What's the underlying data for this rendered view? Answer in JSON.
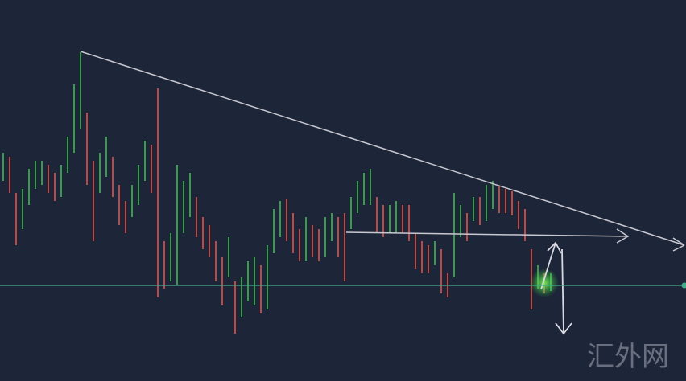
{
  "chart_data": {
    "type": "ohlc",
    "high": [
      284,
      279,
      234,
      239,
      264,
      274,
      274,
      269,
      259,
      269,
      304,
      369,
      409,
      334,
      274,
      284,
      304,
      279,
      244,
      224,
      244,
      269,
      299,
      294,
      364,
      174,
      184,
      269,
      249,
      259,
      229,
      204,
      194,
      174,
      154,
      179,
      124,
      129,
      149,
      154,
      144,
      169,
      214,
      224,
      226,
      209,
      189,
      204,
      194,
      189,
      204,
      209,
      204,
      209,
      229,
      249,
      259,
      264,
      229,
      219,
      219,
      224,
      219,
      219,
      184,
      174,
      169,
      174,
      164,
      134,
      234,
      219,
      209,
      229,
      229,
      244,
      249,
      242,
      239,
      236,
      224,
      214,
      164,
      144,
      134,
      134
    ],
    "low": [
      249,
      234,
      169,
      189,
      219,
      239,
      244,
      234,
      224,
      229,
      259,
      284,
      314,
      244,
      174,
      234,
      254,
      229,
      194,
      184,
      204,
      219,
      249,
      234,
      104,
      114,
      124,
      119,
      184,
      204,
      179,
      164,
      154,
      124,
      94,
      129,
      59,
      79,
      99,
      94,
      84,
      89,
      159,
      179,
      174,
      159,
      149,
      149,
      154,
      149,
      154,
      174,
      154,
      124,
      189,
      209,
      219,
      219,
      184,
      179,
      184,
      184,
      184,
      174,
      139,
      134,
      134,
      144,
      109,
      104,
      129,
      179,
      174,
      199,
      194,
      199,
      214,
      209,
      209,
      206,
      189,
      174,
      89,
      114,
      109,
      112
    ],
    "ylim": [
      0,
      474
    ],
    "level": 119,
    "up_color": "#3fb950",
    "down_color": "#e5534b",
    "level_color": "#3fae8a",
    "watermark": "汇外网"
  }
}
